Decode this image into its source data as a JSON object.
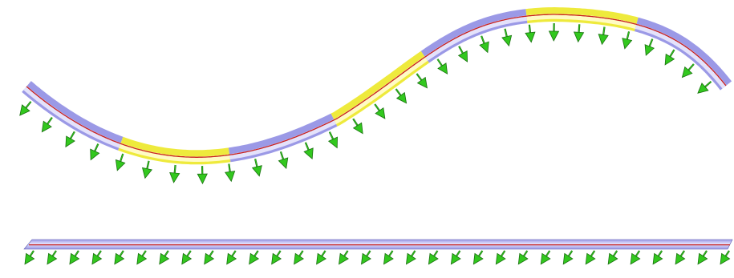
{
  "colors": {
    "background": "#ffffff",
    "segment_a": "#9b99e6",
    "segment_a_highlight": "#e4e2fb",
    "segment_b": "#eeea3c",
    "segment_b_highlight": "#fffbc4",
    "centerline": "#c8201e",
    "arrow_fill": "#32c81e",
    "arrow_dark": "#1a7010"
  },
  "icons": {
    "load_arrow": "arrow-down-icon"
  },
  "curved_beam": {
    "segment_count": 7,
    "segment_colors": [
      "segment_a",
      "segment_b",
      "segment_a",
      "segment_b",
      "segment_a",
      "segment_b",
      "segment_a"
    ],
    "load_arrow_count": 30
  },
  "straight_beam": {
    "load_arrow_count": 32
  }
}
